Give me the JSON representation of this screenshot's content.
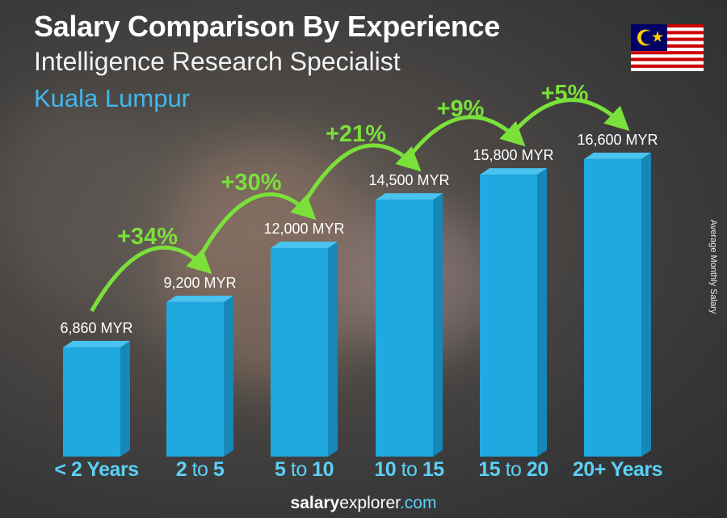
{
  "title": "Salary Comparison By Experience",
  "subtitle": "Intelligence Research Specialist",
  "city": "Kuala Lumpur",
  "flag_icon": "malaysia-flag",
  "footer": {
    "brand_bold": "salary",
    "brand_regular": "explorer",
    "brand_domain": ".com"
  },
  "colors": {
    "bar_front": "#1ea9e1",
    "bar_side": "#1787b8",
    "bar_top": "#49c3f0",
    "pct": "#7be03a",
    "city": "#3fb8ee",
    "category": "#5cd0f5"
  },
  "chart_data": {
    "type": "bar",
    "title": "Salary Comparison By Experience",
    "ylabel": "Average Monthly Salary",
    "xlabel": "",
    "unit": "MYR",
    "categories": [
      {
        "a": "< 2 Years",
        "mid": "",
        "b": ""
      },
      {
        "a": "2",
        "mid": " to ",
        "b": "5"
      },
      {
        "a": "5",
        "mid": " to ",
        "b": "10"
      },
      {
        "a": "10",
        "mid": " to ",
        "b": "15"
      },
      {
        "a": "15",
        "mid": " to ",
        "b": "20"
      },
      {
        "a": "20+ Years",
        "mid": "",
        "b": ""
      }
    ],
    "values": [
      6860,
      9200,
      12000,
      14500,
      15800,
      16600
    ],
    "value_labels": [
      "6,860 MYR",
      "9,200 MYR",
      "12,000 MYR",
      "14,500 MYR",
      "15,800 MYR",
      "16,600 MYR"
    ],
    "changes": [
      "+34%",
      "+30%",
      "+21%",
      "+9%",
      "+5%"
    ],
    "grid": false,
    "legend": "none"
  }
}
